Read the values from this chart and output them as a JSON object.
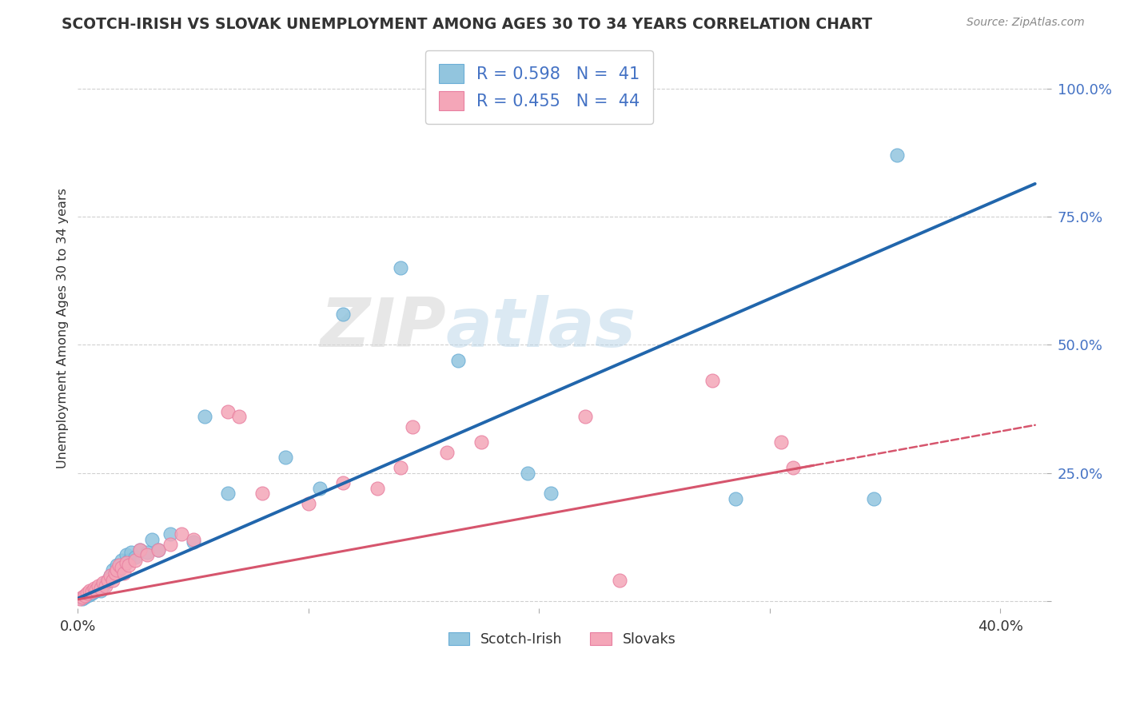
{
  "title": "SCOTCH-IRISH VS SLOVAK UNEMPLOYMENT AMONG AGES 30 TO 34 YEARS CORRELATION CHART",
  "source": "Source: ZipAtlas.com",
  "ylabel": "Unemployment Among Ages 30 to 34 years",
  "xlim": [
    0.0,
    0.42
  ],
  "ylim": [
    -0.015,
    1.08
  ],
  "blue_color": "#92c5de",
  "blue_edge_color": "#6baed6",
  "pink_color": "#f4a6b8",
  "pink_edge_color": "#e87fa0",
  "blue_line_color": "#2166ac",
  "pink_line_color": "#d6556d",
  "grid_color": "#d0d0d0",
  "background_color": "#ffffff",
  "text_color": "#333333",
  "accent_color": "#4472c4",
  "watermark_color": "#e8e8e8",
  "si_slope": 1.95,
  "si_intercept": 0.005,
  "sk_slope": 0.82,
  "sk_intercept": 0.003,
  "scotch_irish_x": [
    0.002,
    0.003,
    0.004,
    0.005,
    0.006,
    0.007,
    0.008,
    0.009,
    0.01,
    0.011,
    0.012,
    0.013,
    0.014,
    0.015,
    0.016,
    0.017,
    0.018,
    0.019,
    0.02,
    0.021,
    0.022,
    0.023,
    0.025,
    0.027,
    0.03,
    0.032,
    0.035,
    0.04,
    0.05,
    0.055,
    0.065,
    0.09,
    0.105,
    0.115,
    0.14,
    0.165,
    0.195,
    0.205,
    0.285,
    0.345,
    0.355
  ],
  "scotch_irish_y": [
    0.005,
    0.008,
    0.01,
    0.012,
    0.015,
    0.018,
    0.02,
    0.025,
    0.02,
    0.03,
    0.035,
    0.04,
    0.05,
    0.06,
    0.055,
    0.07,
    0.06,
    0.08,
    0.07,
    0.09,
    0.08,
    0.095,
    0.085,
    0.1,
    0.095,
    0.12,
    0.1,
    0.13,
    0.115,
    0.36,
    0.21,
    0.28,
    0.22,
    0.56,
    0.65,
    0.47,
    0.25,
    0.21,
    0.2,
    0.2,
    0.87
  ],
  "slovak_x": [
    0.001,
    0.002,
    0.003,
    0.004,
    0.005,
    0.006,
    0.007,
    0.008,
    0.009,
    0.01,
    0.011,
    0.012,
    0.013,
    0.014,
    0.015,
    0.016,
    0.017,
    0.018,
    0.019,
    0.02,
    0.021,
    0.022,
    0.025,
    0.027,
    0.03,
    0.035,
    0.04,
    0.045,
    0.05,
    0.065,
    0.07,
    0.08,
    0.1,
    0.115,
    0.13,
    0.14,
    0.145,
    0.16,
    0.175,
    0.22,
    0.235,
    0.275,
    0.305,
    0.31
  ],
  "slovak_y": [
    0.005,
    0.008,
    0.01,
    0.015,
    0.02,
    0.018,
    0.025,
    0.022,
    0.03,
    0.025,
    0.035,
    0.03,
    0.04,
    0.05,
    0.04,
    0.055,
    0.06,
    0.07,
    0.065,
    0.055,
    0.075,
    0.07,
    0.08,
    0.1,
    0.09,
    0.1,
    0.11,
    0.13,
    0.12,
    0.37,
    0.36,
    0.21,
    0.19,
    0.23,
    0.22,
    0.26,
    0.34,
    0.29,
    0.31,
    0.36,
    0.04,
    0.43,
    0.31,
    0.26
  ]
}
